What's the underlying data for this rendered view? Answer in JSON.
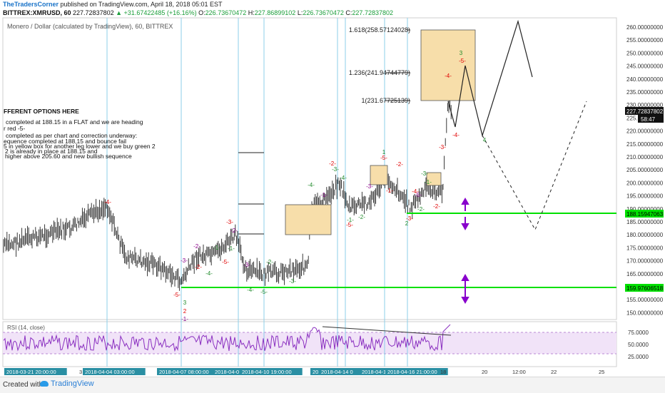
{
  "header": {
    "author": "TheTradersCorner",
    "published": "published on TradingView.com, April 18, 2018 05:01 EST",
    "symbol": "BITTREX:XMRUSD, 60",
    "last": "227.72837802",
    "change": "+31.67422485 (+16.16%)",
    "open_label": "O:",
    "open": "226.73670472",
    "high_label": "H:",
    "high": "227.86899102",
    "low_label": "L:",
    "low": "226.73670472",
    "close_label": "C:",
    "close": "227.72837802"
  },
  "chart_title": "Monero / Dollar (calculated by TradingView), 60, BITTREX",
  "fib_labels": [
    "1.618(258.57124028)",
    "1.236(241.94744779)",
    "1(231.67725139)"
  ],
  "notes": [
    "FFERENT OPTIONS HERE",
    "completed at 188.15 in a FLAT and we are heading",
    "r red -5-",
    "completed as per chart and correction underway:",
    "equence completed at 188,15 and bounce fail",
    "5 in yellow box for another leg lower and we buy green 2",
    "2 is already in place at 188.15 and",
    "higher above 205.60 and new bullish sequence"
  ],
  "price_axis": [
    "260.00000000",
    "255.00000000",
    "250.00000000",
    "245.00000000",
    "240.00000000",
    "235.00000000",
    "230.00000000",
    "225.00000000",
    "220.00000000",
    "215.00000000",
    "210.00000000",
    "205.00000000",
    "200.00000000",
    "195.00000000",
    "190.00000000",
    "185.00000000",
    "180.00000000",
    "175.00000000",
    "170.00000000",
    "165.00000000",
    "160.00000000",
    "155.00000000",
    "150.00000000"
  ],
  "price_badges": {
    "last": "227.72837802",
    "countdown": "58:47",
    "support_high": "188.15947063",
    "support_low": "159.97606518"
  },
  "rsi": {
    "label": "RSI (14, close)",
    "ticks": [
      "75.0000",
      "50.0000",
      "25.0000"
    ]
  },
  "time_axis": {
    "labels": [
      "2018-03-21 20:00:00",
      "3",
      "2018-04-04 03:00:00",
      "2018-04-07 08:00:00",
      "2018-04-0",
      "2018-04-10 19:00:00",
      "201",
      "2018-04-14 0",
      "2018-04-1",
      "2018-04-16 21:00:00",
      "18",
      "20",
      "12:00",
      "22",
      "25"
    ]
  },
  "wave_labels": [
    "-4-",
    "-5-",
    "3",
    "2",
    "-1-",
    "-3-",
    "-2-",
    "-1-",
    "-2-",
    "-4-",
    "-3-",
    "-5-",
    "-1-",
    "-2-",
    "-3-",
    "-4-",
    "-5-",
    "-2-",
    "-3-",
    "-4-",
    "-1-",
    "-2-",
    "-3-",
    "-4-",
    "-5-",
    "-1-",
    "-2-",
    "-3-",
    "1",
    "-5-",
    "-2-",
    "-1-",
    "-3-",
    "-4-",
    "-5-",
    "-3-",
    "-2-",
    "2",
    "-1-",
    "-2-",
    "-3-",
    "-4-",
    "-5-",
    "3",
    "-4-",
    "4"
  ],
  "footer": {
    "created": "Created with",
    "brand": "TradingView"
  },
  "colors": {
    "accent": "#1b9e3a",
    "support": "#00e000",
    "wave_red": "#e00000",
    "wave_green": "#1f8a2a",
    "wave_purple": "#8a008a",
    "fib_box": "#f5dba0",
    "rsi_fill": "#f0e0f8",
    "rsi_line": "#8a2fc0",
    "arrow": "#8800cc",
    "vline": "#7fc6e6"
  }
}
